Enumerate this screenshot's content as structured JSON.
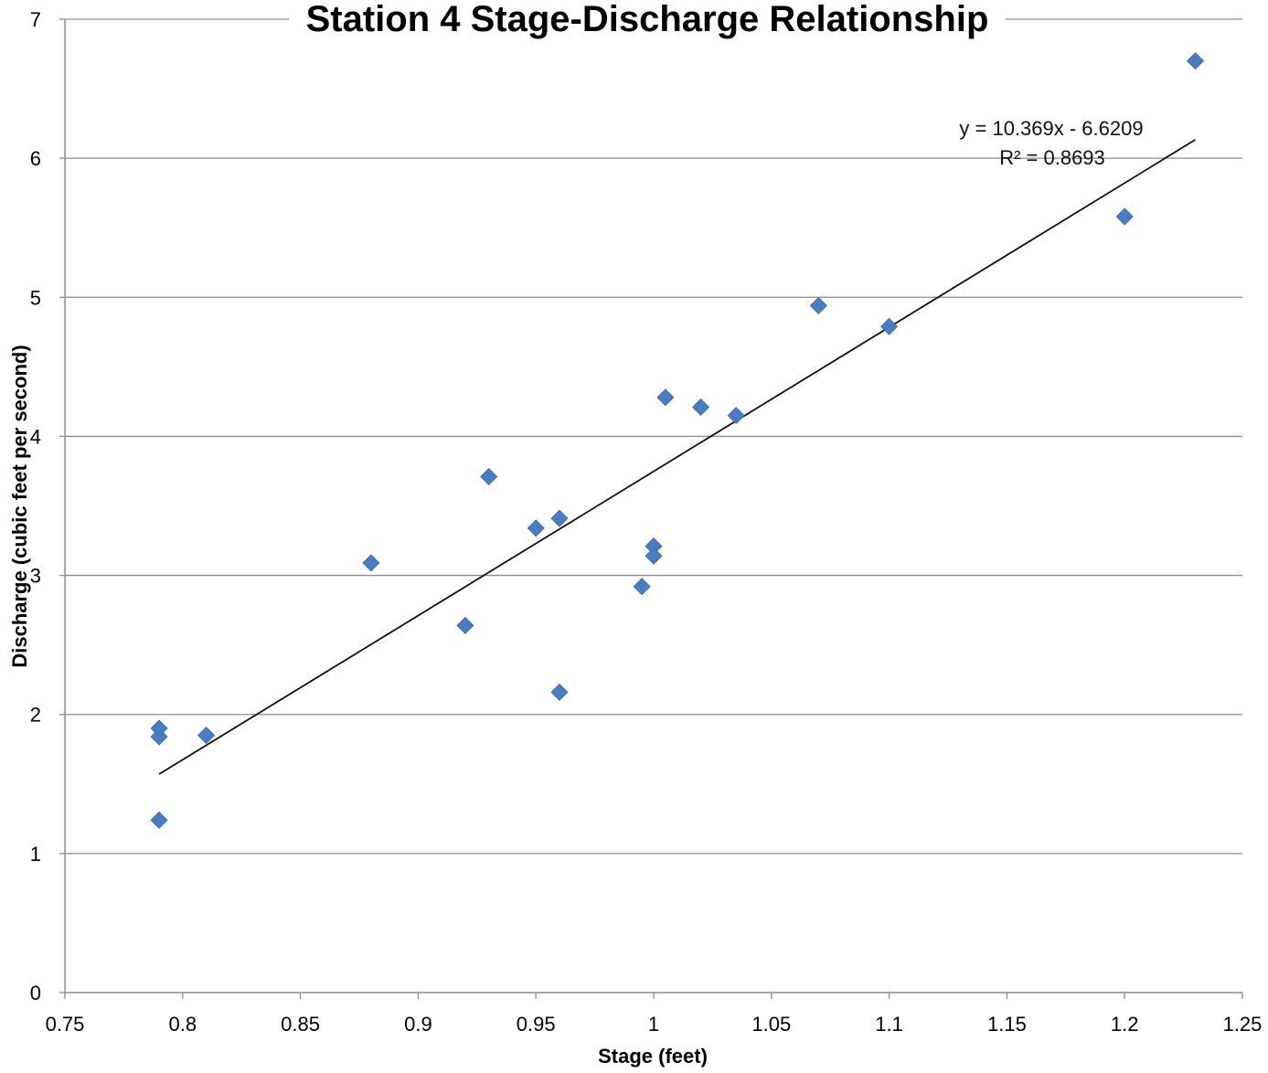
{
  "chart_data": {
    "type": "scatter",
    "title": "Station 4 Stage-Discharge Relationship",
    "xlabel": "Stage (feet)",
    "ylabel": "Discharge (cubic feet per second)",
    "xlim": [
      0.75,
      1.25
    ],
    "ylim": [
      0,
      7
    ],
    "xticks": [
      0.75,
      0.8,
      0.85,
      0.9,
      0.95,
      1,
      1.05,
      1.1,
      1.15,
      1.2,
      1.25
    ],
    "xtick_labels": [
      "0.75",
      "0.8",
      "0.85",
      "0.9",
      "0.95",
      "1",
      "1.05",
      "1.1",
      "1.15",
      "1.2",
      "1.25"
    ],
    "yticks": [
      0,
      1,
      2,
      3,
      4,
      5,
      6,
      7
    ],
    "ytick_labels": [
      "0",
      "1",
      "2",
      "3",
      "4",
      "5",
      "6",
      "7"
    ],
    "grid": "horizontal",
    "marker": "diamond",
    "marker_color": "#4a7cc4",
    "line_color": "#111111",
    "series": [
      {
        "x": [
          0.79,
          0.79,
          0.79,
          0.81,
          0.88,
          0.92,
          0.93,
          0.95,
          0.96,
          0.96,
          0.995,
          1.0,
          1.0,
          1.005,
          1.02,
          1.035,
          1.07,
          1.1,
          1.2,
          1.23
        ],
        "y": [
          1.24,
          1.84,
          1.9,
          1.85,
          3.09,
          2.64,
          3.71,
          3.34,
          3.41,
          2.16,
          2.92,
          3.21,
          3.14,
          4.28,
          4.21,
          4.15,
          4.94,
          4.79,
          5.58,
          6.7
        ]
      }
    ],
    "trendline": {
      "type": "linear",
      "slope": 10.369,
      "intercept": -6.6209,
      "x_range": [
        0.79,
        1.23
      ]
    },
    "annotations": [
      "y = 10.369x - 6.6209",
      "R² = 0.8693"
    ]
  }
}
